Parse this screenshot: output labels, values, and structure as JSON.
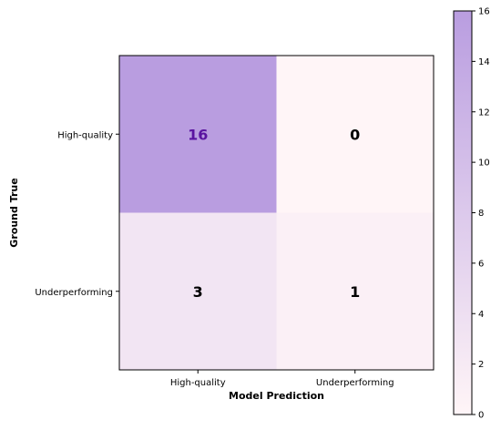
{
  "chart_data": {
    "type": "heatmap",
    "title": "",
    "xlabel": "Model Prediction",
    "ylabel": "Ground True",
    "x_categories": [
      "High-quality",
      "Underperforming"
    ],
    "y_categories": [
      "High-quality",
      "Underperforming"
    ],
    "values": [
      [
        16,
        0
      ],
      [
        3,
        1
      ]
    ],
    "colorbar": {
      "min": 0,
      "max": 16,
      "ticks": [
        0,
        2,
        4,
        6,
        8,
        10,
        12,
        14,
        16
      ]
    },
    "colors": {
      "low": "#fff5f7",
      "high": "#b99de0",
      "highlight_text": "#5a14a0",
      "text": "#000000"
    }
  }
}
